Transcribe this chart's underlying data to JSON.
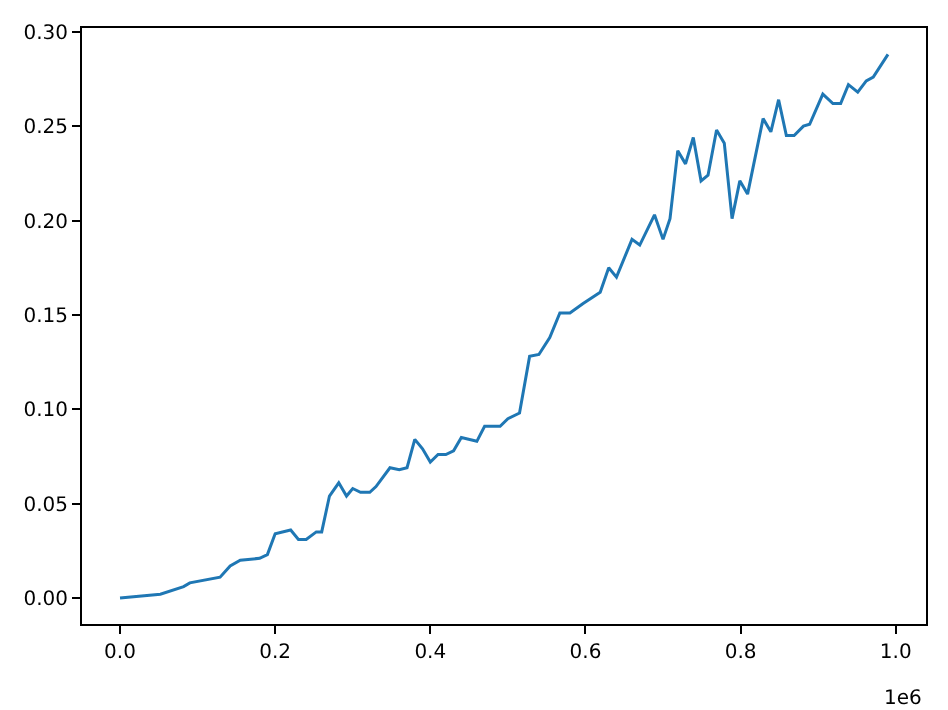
{
  "chart_data": {
    "type": "line",
    "x": [
      0,
      0.052,
      0.082,
      0.09,
      0.129,
      0.142,
      0.155,
      0.18,
      0.19,
      0.2,
      0.22,
      0.23,
      0.24,
      0.253,
      0.26,
      0.27,
      0.282,
      0.292,
      0.3,
      0.31,
      0.322,
      0.33,
      0.348,
      0.36,
      0.37,
      0.38,
      0.39,
      0.4,
      0.41,
      0.42,
      0.43,
      0.44,
      0.46,
      0.47,
      0.49,
      0.5,
      0.515,
      0.528,
      0.54,
      0.554,
      0.567,
      0.58,
      0.597,
      0.619,
      0.63,
      0.64,
      0.66,
      0.67,
      0.689,
      0.7,
      0.709,
      0.719,
      0.729,
      0.739,
      0.749,
      0.758,
      0.769,
      0.779,
      0.789,
      0.799,
      0.809,
      0.829,
      0.839,
      0.849,
      0.859,
      0.869,
      0.881,
      0.889,
      0.906,
      0.919,
      0.929,
      0.939,
      0.951,
      0.962,
      0.971,
      0.99
    ],
    "series": [
      {
        "color": "#1f77b4",
        "values": [
          0,
          0.002,
          0.006,
          0.008,
          0.011,
          0.017,
          0.02,
          0.021,
          0.023,
          0.034,
          0.036,
          0.031,
          0.031,
          0.035,
          0.035,
          0.054,
          0.061,
          0.054,
          0.058,
          0.056,
          0.056,
          0.059,
          0.069,
          0.068,
          0.069,
          0.084,
          0.079,
          0.072,
          0.076,
          0.076,
          0.078,
          0.085,
          0.083,
          0.091,
          0.091,
          0.095,
          0.098,
          0.128,
          0.129,
          0.138,
          0.151,
          0.151,
          0.156,
          0.162,
          0.175,
          0.17,
          0.19,
          0.187,
          0.203,
          0.19,
          0.201,
          0.237,
          0.23,
          0.244,
          0.221,
          0.224,
          0.248,
          0.241,
          0.201,
          0.221,
          0.214,
          0.254,
          0.247,
          0.264,
          0.245,
          0.245,
          0.25,
          0.251,
          0.267,
          0.262,
          0.262,
          0.272,
          0.268,
          0.274,
          0.276,
          0.288
        ]
      }
    ],
    "xlim": [
      -0.049,
      1.039
    ],
    "xticks": [
      {
        "value": 0,
        "label": "0.0"
      },
      {
        "value": 0.2,
        "label": "0.2"
      },
      {
        "value": 0.4,
        "label": "0.4"
      },
      {
        "value": 0.6,
        "label": "0.6"
      },
      {
        "value": 0.8,
        "label": "0.8"
      },
      {
        "value": 1,
        "label": "1.0"
      }
    ],
    "ylim": [
      -0.0138,
      0.302
    ],
    "yticks": [
      {
        "value": 0,
        "label": "0.00"
      },
      {
        "value": 0.05,
        "label": "0.05"
      },
      {
        "value": 0.1,
        "label": "0.10"
      },
      {
        "value": 0.15,
        "label": "0.15"
      },
      {
        "value": 0.2,
        "label": "0.20"
      },
      {
        "value": 0.25,
        "label": "0.25"
      },
      {
        "value": 0.3,
        "label": "0.30"
      }
    ],
    "annotations": [
      "1e6"
    ],
    "line_style": "solid",
    "marker": "none"
  }
}
